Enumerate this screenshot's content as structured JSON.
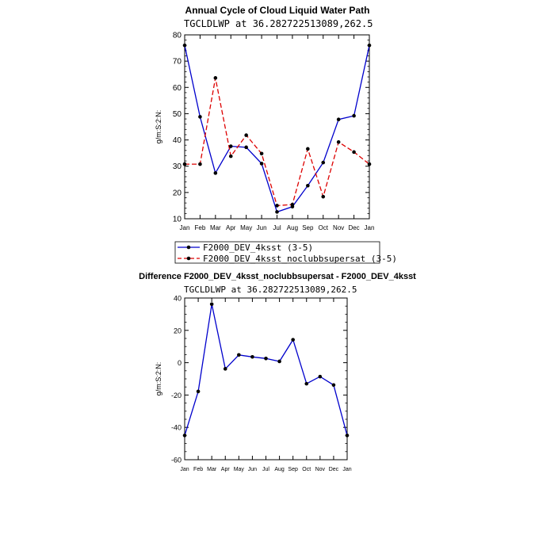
{
  "chart_data": [
    {
      "type": "line",
      "title": "Annual Cycle of Cloud Liquid Water Path",
      "subtitle": "TGCLDLWP at 36.282722513089,262.5",
      "ylabel": "g/m:S:2:N:",
      "categories": [
        "Jan",
        "Feb",
        "Mar",
        "Apr",
        "May",
        "Jun",
        "Jul",
        "Aug",
        "Sep",
        "Oct",
        "Nov",
        "Dec",
        "Jan"
      ],
      "ylim": [
        10,
        80
      ],
      "yticks": [
        10,
        20,
        30,
        40,
        50,
        60,
        70,
        80
      ],
      "grid": false,
      "legend_position": "bottom",
      "series": [
        {
          "name": "F2000_DEV_4ksst (3-5)",
          "color": "#0000cc",
          "dash": "solid",
          "values": [
            76.0,
            48.8,
            27.4,
            37.6,
            37.2,
            31.0,
            12.6,
            14.6,
            22.6,
            31.4,
            47.8,
            49.2,
            76.0
          ]
        },
        {
          "name": "F2000_DEV_4ksst_noclubbsupersat (3-5)",
          "color": "#dd0000",
          "dash": "dashed",
          "values": [
            30.8,
            30.8,
            63.6,
            33.8,
            41.8,
            34.8,
            15.0,
            15.4,
            36.6,
            18.4,
            39.2,
            35.4,
            30.8
          ]
        }
      ]
    },
    {
      "type": "line",
      "title": "Difference F2000_DEV_4ksst_noclubbsupersat - F2000_DEV_4ksst",
      "subtitle": "TGCLDLWP at 36.282722513089,262.5",
      "ylabel": "g/m:S:2:N:",
      "categories": [
        "Jan",
        "Feb",
        "Mar",
        "Apr",
        "May",
        "Jun",
        "Jul",
        "Aug",
        "Sep",
        "Oct",
        "Nov",
        "Dec",
        "Jan"
      ],
      "ylim": [
        -60,
        40
      ],
      "yticks": [
        -60,
        -40,
        -20,
        0,
        20,
        40
      ],
      "grid": false,
      "series": [
        {
          "color": "#0000cc",
          "dash": "solid",
          "values": [
            -45.0,
            -17.8,
            36.2,
            -3.8,
            4.8,
            3.6,
            2.6,
            0.8,
            14.2,
            -13.0,
            -8.6,
            -13.8,
            -45.0
          ]
        }
      ]
    }
  ]
}
